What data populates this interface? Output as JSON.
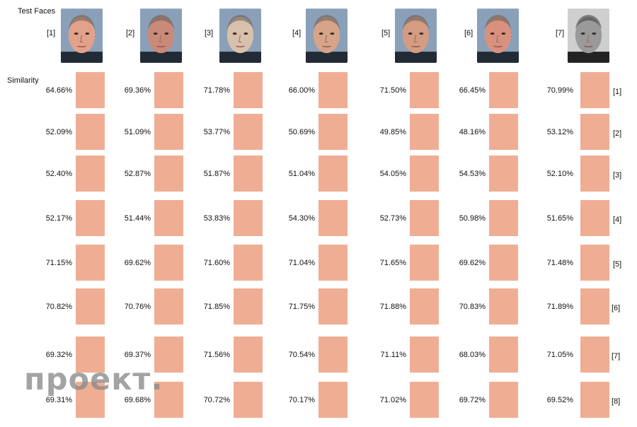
{
  "header_label": "Test Faces",
  "similarity_label": "Similarity",
  "faces": [
    {
      "label": "[1]",
      "tone": "#e2a18a"
    },
    {
      "label": "[2]",
      "tone": "#c98a7a"
    },
    {
      "label": "[3]",
      "tone": "#d8c1ac"
    },
    {
      "label": "[4]",
      "tone": "#d6a489"
    },
    {
      "label": "[5]",
      "tone": "#d39c83"
    },
    {
      "label": "[6]",
      "tone": "#d9917f"
    },
    {
      "label": "[7]",
      "tone": "#9a9a9a"
    }
  ],
  "row_labels": [
    "[1]",
    "[2]",
    "[3]",
    "[4]",
    "[5]",
    "[6]",
    "[7]",
    "[8]"
  ],
  "similarity_rows": [
    [
      "64.66%",
      "69.36%",
      "71.78%",
      "66.00%",
      "71.50%",
      "66.45%",
      "70.99%"
    ],
    [
      "52.09%",
      "51.09%",
      "53.77%",
      "50.69%",
      "49.85%",
      "48.16%",
      "53.12%"
    ],
    [
      "52.40%",
      "52.87%",
      "51.87%",
      "51.04%",
      "54.05%",
      "54.53%",
      "52.10%"
    ],
    [
      "52.17%",
      "51.44%",
      "53.83%",
      "54.30%",
      "52.73%",
      "50.98%",
      "51.65%"
    ],
    [
      "71.15%",
      "69.62%",
      "71.60%",
      "71.04%",
      "71.65%",
      "69.62%",
      "71.48%"
    ],
    [
      "70.82%",
      "70.76%",
      "71.85%",
      "71.75%",
      "71.88%",
      "70.83%",
      "71.89%"
    ],
    [
      "69.32%",
      "69.37%",
      "71.56%",
      "70.54%",
      "71.11%",
      "68.03%",
      "71.05%"
    ],
    [
      "69.31%",
      "69.68%",
      "70.72%",
      "70.17%",
      "71.02%",
      "69.72%",
      "69.52%"
    ]
  ],
  "cell_color": "#efae93",
  "watermark": "проект."
}
